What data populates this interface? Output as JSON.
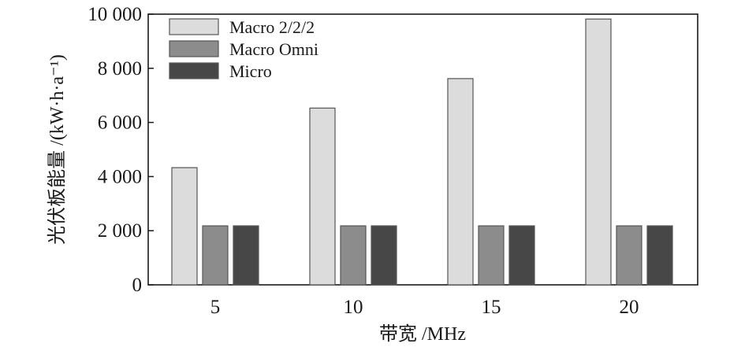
{
  "chart_data": {
    "type": "bar",
    "xlabel": "带宽 /MHz",
    "ylabel": "光伏板能量 /(kW·h·a⁻¹)",
    "categories": [
      "5",
      "10",
      "15",
      "20"
    ],
    "ylim": [
      0,
      10000
    ],
    "yticks": [
      0,
      2000,
      4000,
      6000,
      8000,
      10000
    ],
    "ytick_labels": [
      "0",
      "2 000",
      "4 000",
      "6 000",
      "8 000",
      "10 000"
    ],
    "series": [
      {
        "name": "Macro 2/2/2",
        "color": "#dcdcdc",
        "values": [
          4330,
          6530,
          7620,
          9820
        ]
      },
      {
        "name": "Macro Omni",
        "color": "#8c8c8c",
        "values": [
          2180,
          2180,
          2180,
          2180
        ]
      },
      {
        "name": "Micro",
        "color": "#474747",
        "values": [
          2180,
          2180,
          2180,
          2180
        ]
      }
    ],
    "legend_position": "top-left",
    "grid": false
  }
}
